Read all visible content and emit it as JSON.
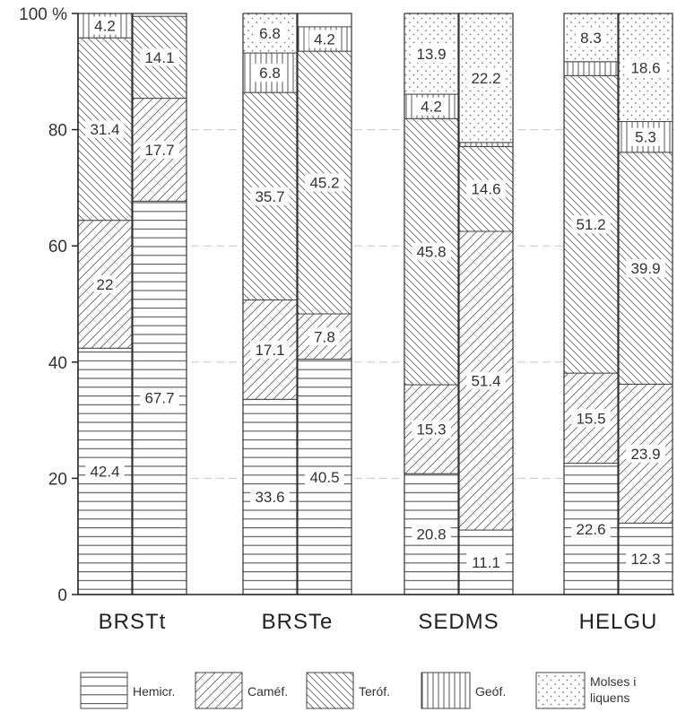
{
  "chart_data": {
    "type": "bar",
    "stacked": true,
    "ylim": [
      0,
      100
    ],
    "yticks": [
      0,
      20,
      40,
      60,
      80,
      100
    ],
    "ytick_labels": [
      "0",
      "20",
      "40",
      "60",
      "80",
      "100 %"
    ],
    "grid": true,
    "legend_position": "bottom",
    "groups": [
      "BRSTt",
      "BRSTe",
      "SEDMS",
      "HELGU"
    ],
    "series": [
      {
        "name": "Hemicr.",
        "pattern": "horizontal-lines"
      },
      {
        "name": "Caméf.",
        "pattern": "diagonal-up"
      },
      {
        "name": "Teróf.",
        "pattern": "diagonal-down"
      },
      {
        "name": "Geóf.",
        "pattern": "vertical-lines"
      },
      {
        "name": "Molses i liquens",
        "pattern": "dots"
      }
    ],
    "bars": [
      {
        "group": "BRSTt",
        "values": [
          42.4,
          22,
          31.4,
          4.2,
          0
        ],
        "labels": [
          "42.4",
          "22",
          "31.4",
          "4.2",
          ""
        ]
      },
      {
        "group": "BRSTt",
        "values": [
          67.7,
          17.7,
          14.1,
          0,
          0
        ],
        "labels": [
          "67.7",
          "17.7",
          "14.1",
          "",
          ""
        ]
      },
      {
        "group": "BRSTe",
        "values": [
          33.6,
          17.1,
          35.7,
          6.8,
          6.8
        ],
        "labels": [
          "33.6",
          "17.1",
          "35.7",
          "6.8",
          "6.8"
        ]
      },
      {
        "group": "BRSTe",
        "values": [
          40.5,
          7.8,
          45.2,
          4.2,
          0
        ],
        "labels": [
          "40.5",
          "7.8",
          "45.2",
          "4.2",
          ""
        ]
      },
      {
        "group": "SEDMS",
        "values": [
          20.8,
          15.3,
          45.8,
          4.2,
          13.9
        ],
        "labels": [
          "20.8",
          "15.3",
          "45.8",
          "4.2",
          "13.9"
        ]
      },
      {
        "group": "SEDMS",
        "values": [
          11.1,
          51.4,
          14.6,
          0.7,
          22.2
        ],
        "labels": [
          "11.1",
          "51.4",
          "14.6",
          "",
          "22.2"
        ]
      },
      {
        "group": "HELGU",
        "values": [
          22.6,
          15.5,
          51.2,
          2.4,
          8.3
        ],
        "labels": [
          "22.6",
          "15.5",
          "51.2",
          "",
          "8.3"
        ]
      },
      {
        "group": "HELGU",
        "values": [
          12.3,
          23.9,
          39.9,
          5.3,
          18.6
        ],
        "labels": [
          "12.3",
          "23.9",
          "39.9",
          "5.3",
          "18.6"
        ]
      }
    ]
  }
}
